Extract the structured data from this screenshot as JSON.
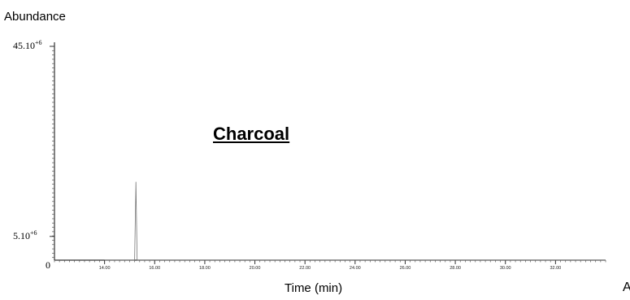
{
  "chart_data": {
    "type": "line",
    "title": "",
    "annotation": "Charcoal",
    "ylabel": "Abundance",
    "xlabel": "Time (min)",
    "origin_label": "0",
    "cut_off_label": "A",
    "xlim": [
      12.0,
      34.0
    ],
    "ylim": [
      0,
      45
    ],
    "x_ticks": [
      "14.00",
      "16.00",
      "18.00",
      "20.00",
      "22.00",
      "24.00",
      "26.00",
      "28.00",
      "30.00",
      "32.00"
    ],
    "y_ticks": [
      {
        "value": 45,
        "base": "45.10",
        "exp": "+6"
      },
      {
        "value": 5,
        "base": "5.10",
        "exp": "+6"
      }
    ],
    "series": [
      {
        "x": [
          14.0,
          15.0,
          15.2,
          15.25,
          15.3,
          16.0,
          34.0
        ],
        "y": [
          0,
          0,
          0,
          16.5,
          0,
          0,
          0
        ]
      }
    ]
  }
}
